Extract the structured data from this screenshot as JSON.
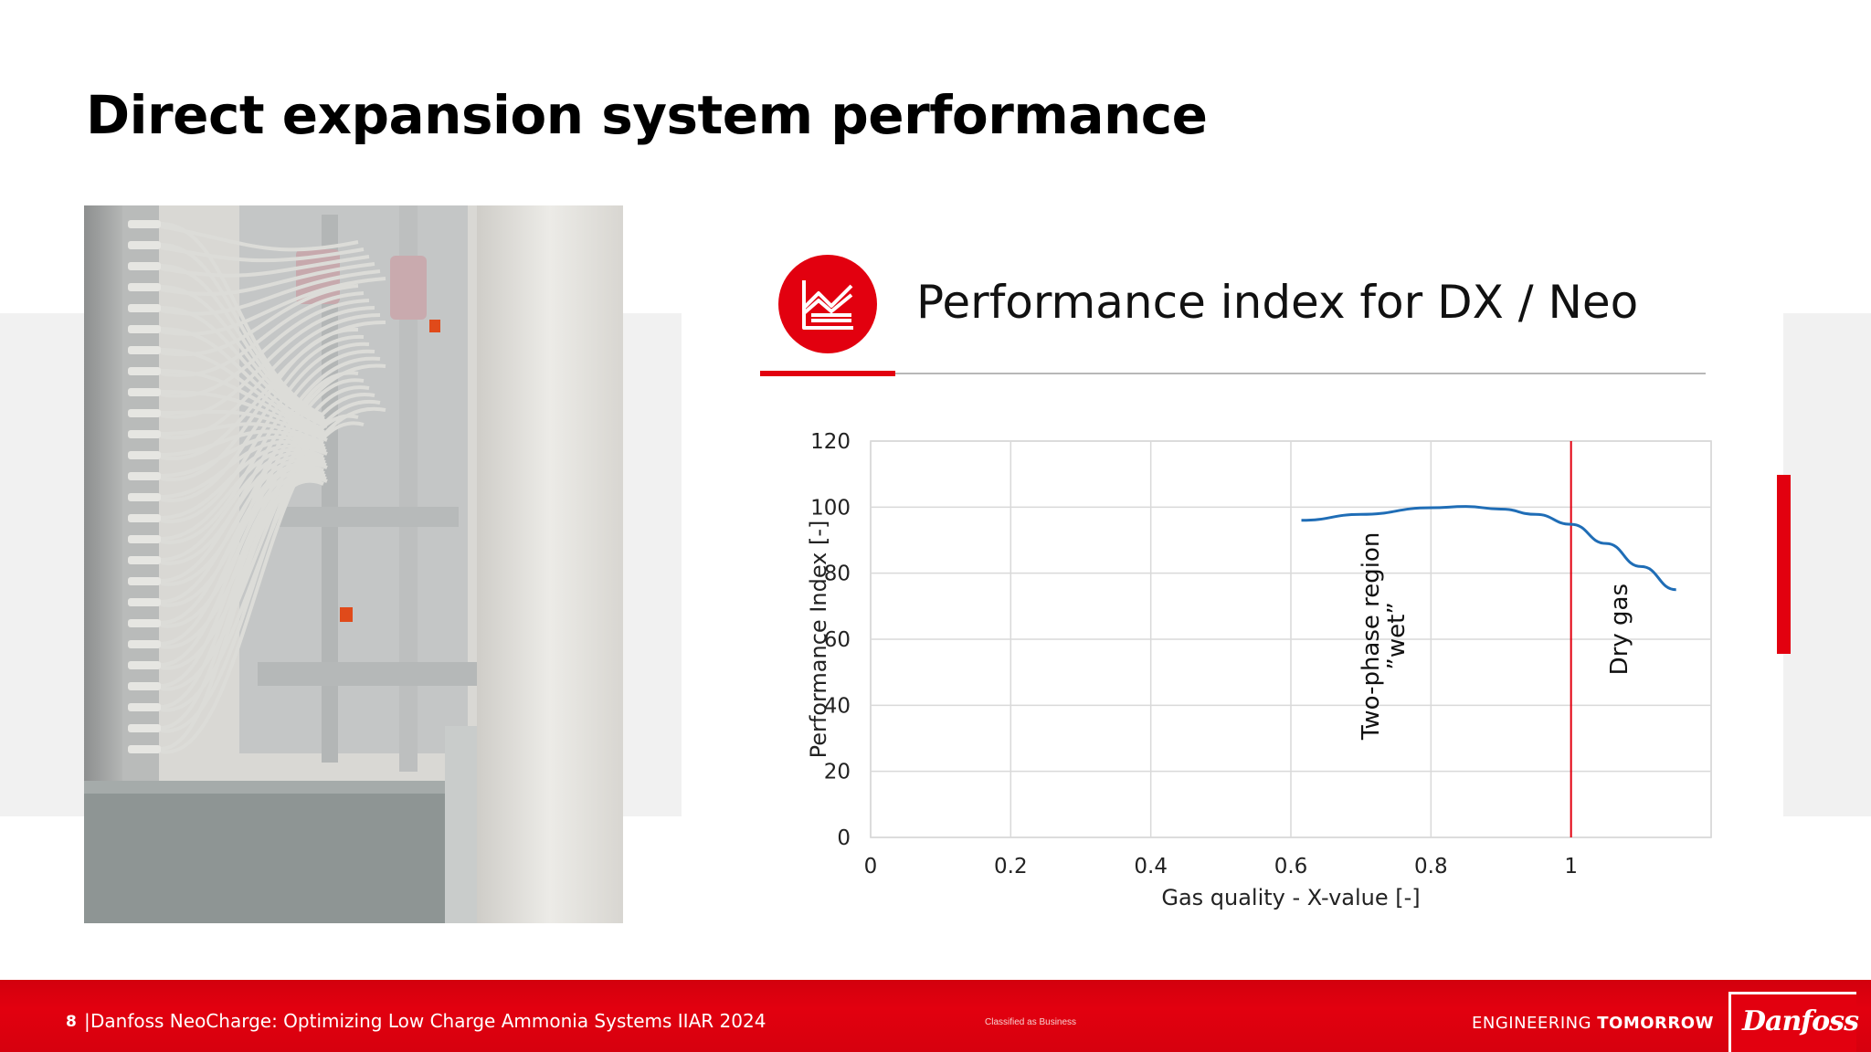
{
  "slide": {
    "title": "Direct expansion system performance",
    "chart_heading": "Performance index for DX / Neo"
  },
  "icons": {
    "chart_icon": "area-chart-icon"
  },
  "colors": {
    "brand_red": "#e2000f",
    "series_line": "#1f6db6",
    "threshold_line": "#e2000f",
    "gridline": "#d9d9d9"
  },
  "chart_data": {
    "type": "line",
    "xlabel": "Gas quality  -  X-value [-]",
    "ylabel": "Performance Index [-]",
    "xlim": [
      0,
      1.2
    ],
    "ylim": [
      0,
      120
    ],
    "x_ticks": [
      0,
      0.2,
      0.4,
      0.6,
      0.8,
      1
    ],
    "x_tick_labels": [
      "0",
      "0.2",
      "0.4",
      "0.6",
      "0.8",
      "1"
    ],
    "y_ticks": [
      0,
      20,
      40,
      60,
      80,
      100,
      120
    ],
    "y_tick_labels": [
      "0",
      "20",
      "40",
      "60",
      "80",
      "100",
      "120"
    ],
    "grid": true,
    "legend": "none",
    "series": [
      {
        "x": [
          0.615,
          0.7,
          0.8,
          0.85,
          0.9,
          0.95,
          1.0,
          1.05,
          1.1,
          1.15
        ],
        "y": [
          96,
          97.8,
          99.8,
          100.2,
          99.4,
          97.8,
          94.8,
          89,
          82,
          75
        ]
      }
    ],
    "vertical_line": {
      "x": 1.0
    },
    "annotations": [
      {
        "lines": [
          "Two-phase region",
          "”wet”"
        ],
        "x": 0.725,
        "y": 61
      },
      {
        "lines": [
          "Dry gas"
        ],
        "x": 1.08,
        "y": 63
      }
    ]
  },
  "footer": {
    "page_number": "8",
    "separator": "|",
    "text": "Danfoss NeoCharge: Optimizing Low Charge Ammonia Systems IIAR 2024",
    "classification": "Classified as Business",
    "tagline_light": "ENGINEERING ",
    "tagline_bold": "TOMORROW",
    "logo": "Danfoss"
  }
}
